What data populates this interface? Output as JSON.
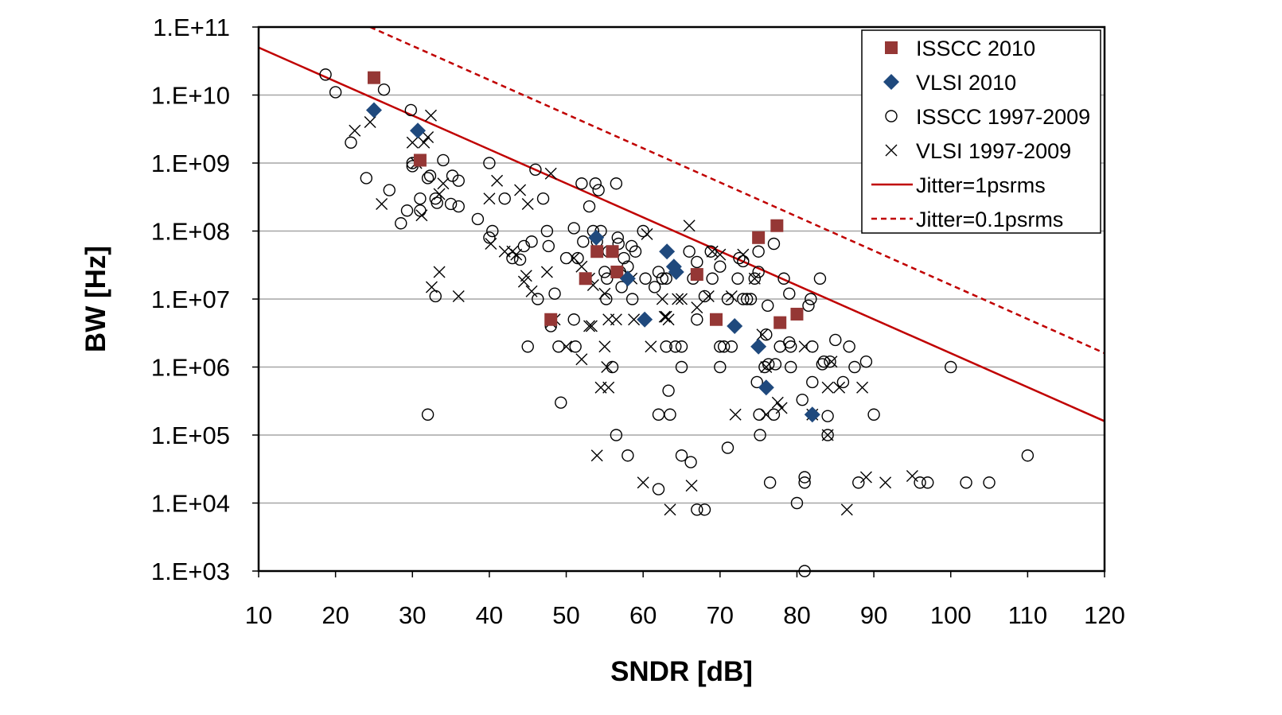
{
  "chart_data": {
    "type": "scatter",
    "title": "",
    "xlabel": "SNDR [dB]",
    "ylabel": "BW [Hz]",
    "xlim": [
      10,
      120
    ],
    "ylim": [
      1000.0,
      100000000000.0
    ],
    "yscale": "log",
    "grid": "horizontal",
    "legend_position": "top-right",
    "x_ticks": [
      10,
      20,
      30,
      40,
      50,
      60,
      70,
      80,
      90,
      100,
      110,
      120
    ],
    "x_tick_labels": [
      "10",
      "20",
      "30",
      "40",
      "50",
      "60",
      "70",
      "80",
      "90",
      "100",
      "110",
      "120"
    ],
    "y_ticks": [
      100000000000.0,
      10000000000.0,
      1000000000.0,
      100000000.0,
      10000000.0,
      1000000.0,
      100000.0,
      10000.0,
      1000.0
    ],
    "y_tick_labels": [
      "1.E+11",
      "1.E+10",
      "1.E+09",
      "1.E+08",
      "1.E+07",
      "1.E+06",
      "1.E+05",
      "1.E+04",
      "1.E+03"
    ],
    "colors": {
      "isscc2010": "#953735",
      "vlsi2010": "#1F497D",
      "jitter": "#C00000",
      "grid": "#A6A6A6",
      "markers_hist": "#000000"
    },
    "series": [
      {
        "name": "ISSCC 2010",
        "marker": "square",
        "points": [
          [
            25,
            18000000000.0
          ],
          [
            31,
            1100000000.0
          ],
          [
            54,
            50000000.0
          ],
          [
            56,
            50000000.0
          ],
          [
            52.5,
            20000000.0
          ],
          [
            56.6,
            25000000.0
          ],
          [
            67,
            23000000.0
          ],
          [
            48,
            5000000.0
          ],
          [
            69.5,
            5000000.0
          ],
          [
            75,
            80000000.0
          ],
          [
            77.4,
            120000000.0
          ],
          [
            77.8,
            4500000.0
          ],
          [
            80,
            6000000.0
          ]
        ]
      },
      {
        "name": "VLSI 2010",
        "marker": "diamond",
        "points": [
          [
            25,
            6000000000.0
          ],
          [
            30.7,
            3000000000.0
          ],
          [
            53.9,
            80000000.0
          ],
          [
            58,
            20000000.0
          ],
          [
            60.2,
            5000000.0
          ],
          [
            63.1,
            50000000.0
          ],
          [
            64,
            30000000.0
          ],
          [
            64.3,
            25000000.0
          ],
          [
            71.9,
            4000000.0
          ],
          [
            75,
            2000000.0
          ],
          [
            76,
            500000.0
          ],
          [
            82,
            200000.0
          ]
        ]
      },
      {
        "name": "ISSCC 1997-2009",
        "marker": "circle",
        "points": [
          [
            18.7,
            20000000000.0
          ],
          [
            20,
            11000000000.0
          ],
          [
            26.3,
            12000000000.0
          ],
          [
            22,
            2000000000.0
          ],
          [
            24,
            600000000.0
          ],
          [
            27,
            400000000.0
          ],
          [
            29.8,
            6000000000.0
          ],
          [
            30,
            1000000000.0
          ],
          [
            30,
            900000000.0
          ],
          [
            28.5,
            130000000.0
          ],
          [
            29.3,
            200000000.0
          ],
          [
            31,
            300000000.0
          ],
          [
            31,
            200000000.0
          ],
          [
            32,
            600000000.0
          ],
          [
            32.3,
            650000000.0
          ],
          [
            33,
            300000000.0
          ],
          [
            33.2,
            260000000.0
          ],
          [
            34,
            1100000000.0
          ],
          [
            35,
            250000000.0
          ],
          [
            35.2,
            650000000.0
          ],
          [
            36,
            550000000.0
          ],
          [
            36,
            230000000.0
          ],
          [
            38.5,
            150000000.0
          ],
          [
            33,
            11000000.0
          ],
          [
            32,
            200000.0
          ],
          [
            40,
            1000000000.0
          ],
          [
            40,
            80000000.0
          ],
          [
            40.4,
            100000000.0
          ],
          [
            42,
            300000000.0
          ],
          [
            43,
            40000000.0
          ],
          [
            44,
            38000000.0
          ],
          [
            44.5,
            60000000.0
          ],
          [
            45.5,
            70000000.0
          ],
          [
            46,
            800000000.0
          ],
          [
            47,
            300000000.0
          ],
          [
            46.3,
            10000000.0
          ],
          [
            45,
            2000000.0
          ],
          [
            47.5,
            100000000.0
          ],
          [
            47.7,
            60000000.0
          ],
          [
            48,
            4000000.0
          ],
          [
            48.5,
            12000000.0
          ],
          [
            49,
            2000000.0
          ],
          [
            49.3,
            300000.0
          ],
          [
            50,
            40000000.0
          ],
          [
            51,
            110000000.0
          ],
          [
            51.2,
            2000000.0
          ],
          [
            51,
            5000000.0
          ],
          [
            51.5,
            40000000.0
          ],
          [
            52,
            500000000.0
          ],
          [
            52.2,
            70000000.0
          ],
          [
            53,
            230000000.0
          ],
          [
            53.5,
            100000000.0
          ],
          [
            54.2,
            400000000.0
          ],
          [
            53.8,
            500000000.0
          ],
          [
            54,
            70000000.0
          ],
          [
            54.5,
            100000000.0
          ],
          [
            55,
            25000000.0
          ],
          [
            55.2,
            10000000.0
          ],
          [
            55.3,
            20000000.0
          ],
          [
            55.5,
            50000000.0
          ],
          [
            56.5,
            500000000.0
          ],
          [
            56.7,
            80000000.0
          ],
          [
            56.8,
            65000000.0
          ],
          [
            57,
            25000000.0
          ],
          [
            57.2,
            15000000.0
          ],
          [
            57.5,
            40000000.0
          ],
          [
            58,
            30000000.0
          ],
          [
            58.5,
            60000000.0
          ],
          [
            59,
            50000000.0
          ],
          [
            58.6,
            10000000.0
          ],
          [
            56,
            1000000.0
          ],
          [
            56.5,
            100000.0
          ],
          [
            58,
            50000.0
          ],
          [
            60,
            100000000.0
          ],
          [
            60.3,
            20000000.0
          ],
          [
            61.5,
            15000000.0
          ],
          [
            62,
            25000000.0
          ],
          [
            62.5,
            20000000.0
          ],
          [
            63,
            20000000.0
          ],
          [
            63.3,
            450000.0
          ],
          [
            62,
            200000.0
          ],
          [
            63.5,
            200000.0
          ],
          [
            63,
            2000000.0
          ],
          [
            64.2,
            2000000.0
          ],
          [
            65,
            2000000.0
          ],
          [
            65,
            1000000.0
          ],
          [
            65,
            50000.0
          ],
          [
            66.2,
            40000.0
          ],
          [
            62,
            16000.0
          ],
          [
            66,
            50000000.0
          ],
          [
            66.5,
            20000000.0
          ],
          [
            67,
            35000000.0
          ],
          [
            67,
            5000000.0
          ],
          [
            67,
            8000.0
          ],
          [
            68,
            8000.0
          ],
          [
            68,
            11000000.0
          ],
          [
            68.8,
            50000000.0
          ],
          [
            69,
            20000000.0
          ],
          [
            70,
            30000000.0
          ],
          [
            70,
            2000000.0
          ],
          [
            70,
            1000000.0
          ],
          [
            70.5,
            2000000.0
          ],
          [
            71,
            65000.0
          ],
          [
            71.5,
            2000000.0
          ],
          [
            71,
            10000000.0
          ],
          [
            72.3,
            20000000.0
          ],
          [
            72.5,
            40000000.0
          ],
          [
            73,
            36000000.0
          ],
          [
            73,
            10000000.0
          ],
          [
            73.5,
            10000000.0
          ],
          [
            74,
            10000000.0
          ],
          [
            74.5,
            20000000.0
          ],
          [
            74.8,
            600000.0
          ],
          [
            75,
            50000000.0
          ],
          [
            75,
            25000000.0
          ],
          [
            75.1,
            200000.0
          ],
          [
            75.2,
            100000.0
          ],
          [
            75.8,
            1000000.0
          ],
          [
            76,
            3000000.0
          ],
          [
            76.2,
            8000000.0
          ],
          [
            76.3,
            1100000.0
          ],
          [
            76.5,
            20000.0
          ],
          [
            77,
            200000.0
          ],
          [
            77,
            65000000.0
          ],
          [
            77.2,
            1100000.0
          ],
          [
            77.8,
            2000000.0
          ],
          [
            78.3,
            20000000.0
          ],
          [
            79,
            12000000.0
          ],
          [
            79,
            2300000.0
          ],
          [
            79.2,
            2000000.0
          ],
          [
            79.2,
            1000000.0
          ],
          [
            80,
            10000.0
          ],
          [
            80.7,
            330000.0
          ],
          [
            81,
            24000.0
          ],
          [
            81,
            20000.0
          ],
          [
            81,
            1000.0
          ],
          [
            81.5,
            8000000.0
          ],
          [
            81.8,
            10000000.0
          ],
          [
            82,
            600000.0
          ],
          [
            82,
            2000000.0
          ],
          [
            83,
            20000000.0
          ],
          [
            83.3,
            1100000.0
          ],
          [
            83.5,
            1200000.0
          ],
          [
            84,
            100000.0
          ],
          [
            84,
            190000.0
          ],
          [
            84.3,
            1200000.0
          ],
          [
            85,
            2500000.0
          ],
          [
            86,
            600000.0
          ],
          [
            86.8,
            2000000.0
          ],
          [
            87.5,
            1000000.0
          ],
          [
            88,
            20000.0
          ],
          [
            89,
            1200000.0
          ],
          [
            90,
            200000.0
          ],
          [
            96,
            20000.0
          ],
          [
            97,
            20000.0
          ],
          [
            100,
            1000000.0
          ],
          [
            102,
            20000.0
          ],
          [
            105,
            20000.0
          ],
          [
            110,
            50000.0
          ]
        ]
      },
      {
        "name": "VLSI 1997-2009",
        "marker": "x",
        "points": [
          [
            22.5,
            3000000000.0
          ],
          [
            24.5,
            4000000000.0
          ],
          [
            26,
            250000000.0
          ],
          [
            30,
            2000000000.0
          ],
          [
            30.5,
            1000000000.0
          ],
          [
            31.5,
            2000000000.0
          ],
          [
            31.2,
            170000000.0
          ],
          [
            32,
            2400000000.0
          ],
          [
            32.4,
            5000000000.0
          ],
          [
            32.5,
            15000000.0
          ],
          [
            33.5,
            25000000.0
          ],
          [
            34,
            500000000.0
          ],
          [
            33.5,
            350000000.0
          ],
          [
            36,
            11000000.0
          ],
          [
            40,
            300000000.0
          ],
          [
            40.2,
            65000000.0
          ],
          [
            41,
            550000000.0
          ],
          [
            42,
            50000000.0
          ],
          [
            43,
            50000000.0
          ],
          [
            43.5,
            45000000.0
          ],
          [
            44,
            400000000.0
          ],
          [
            44.5,
            18000000.0
          ],
          [
            44.8,
            22000000.0
          ],
          [
            45,
            250000000.0
          ],
          [
            45.5,
            13000000.0
          ],
          [
            47.5,
            25000000.0
          ],
          [
            48,
            4500000.0
          ],
          [
            48.5,
            5000000.0
          ],
          [
            48,
            700000000.0
          ],
          [
            50,
            2000000.0
          ],
          [
            51,
            40000000.0
          ],
          [
            52,
            30000000.0
          ],
          [
            52,
            1300000.0
          ],
          [
            53,
            4000000.0
          ],
          [
            53,
            20000000.0
          ],
          [
            53.3,
            4000000.0
          ],
          [
            53.5,
            16000000.0
          ],
          [
            54,
            50000.0
          ],
          [
            54.5,
            500000.0
          ],
          [
            55,
            2000000.0
          ],
          [
            55,
            12000000.0
          ],
          [
            55.3,
            1000000.0
          ],
          [
            55.5,
            500000.0
          ],
          [
            55.5,
            5000000.0
          ],
          [
            56.5,
            5000000.0
          ],
          [
            58.5,
            20000000.0
          ],
          [
            58.8,
            5000000.0
          ],
          [
            60,
            20000.0
          ],
          [
            60.5,
            90000000.0
          ],
          [
            61,
            2000000.0
          ],
          [
            62.5,
            10000000.0
          ],
          [
            62.8,
            5500000.0
          ],
          [
            63,
            5500000.0
          ],
          [
            63.3,
            5000000.0
          ],
          [
            63.5,
            8000.0
          ],
          [
            64.5,
            10000000.0
          ],
          [
            65,
            10000000.0
          ],
          [
            66.3,
            18000.0
          ],
          [
            66,
            120000000.0
          ],
          [
            67,
            7500000.0
          ],
          [
            68.5,
            11000000.0
          ],
          [
            69,
            50000000.0
          ],
          [
            70,
            45000000.0
          ],
          [
            71.5,
            11000000.0
          ],
          [
            72,
            200000.0
          ],
          [
            73,
            45000000.0
          ],
          [
            74.5,
            20000000.0
          ],
          [
            75.5,
            3000000.0
          ],
          [
            76,
            1000000.0
          ],
          [
            76,
            200000.0
          ],
          [
            77.5,
            300000.0
          ],
          [
            78,
            250000.0
          ],
          [
            81,
            2000000.0
          ],
          [
            82,
            200000.0
          ],
          [
            84,
            100000.0
          ],
          [
            84,
            500000.0
          ],
          [
            84.5,
            1200000.0
          ],
          [
            85.5,
            500000.0
          ],
          [
            86.5,
            8000.0
          ],
          [
            88.5,
            500000.0
          ],
          [
            89,
            24000.0
          ],
          [
            91.5,
            20000.0
          ],
          [
            95,
            25000.0
          ]
        ]
      },
      {
        "name": "Jitter=1psrms",
        "type": "line",
        "style": "solid",
        "points": [
          [
            10,
            50000000000.0
          ],
          [
            120,
            160000.0
          ]
        ]
      },
      {
        "name": "Jitter=0.1psrms",
        "type": "line",
        "style": "dashed",
        "points": [
          [
            24.5,
            100000000000.0
          ],
          [
            120,
            1600000.0
          ]
        ]
      }
    ],
    "legend": [
      {
        "label": "ISSCC 2010",
        "marker": "square"
      },
      {
        "label": "VLSI 2010",
        "marker": "diamond"
      },
      {
        "label": "ISSCC 1997-2009",
        "marker": "circle"
      },
      {
        "label": "VLSI 1997-2009",
        "marker": "x"
      },
      {
        "label": "Jitter=1psrms",
        "marker": "solid-line"
      },
      {
        "label": "Jitter=0.1psrms",
        "marker": "dashed-line"
      }
    ]
  }
}
